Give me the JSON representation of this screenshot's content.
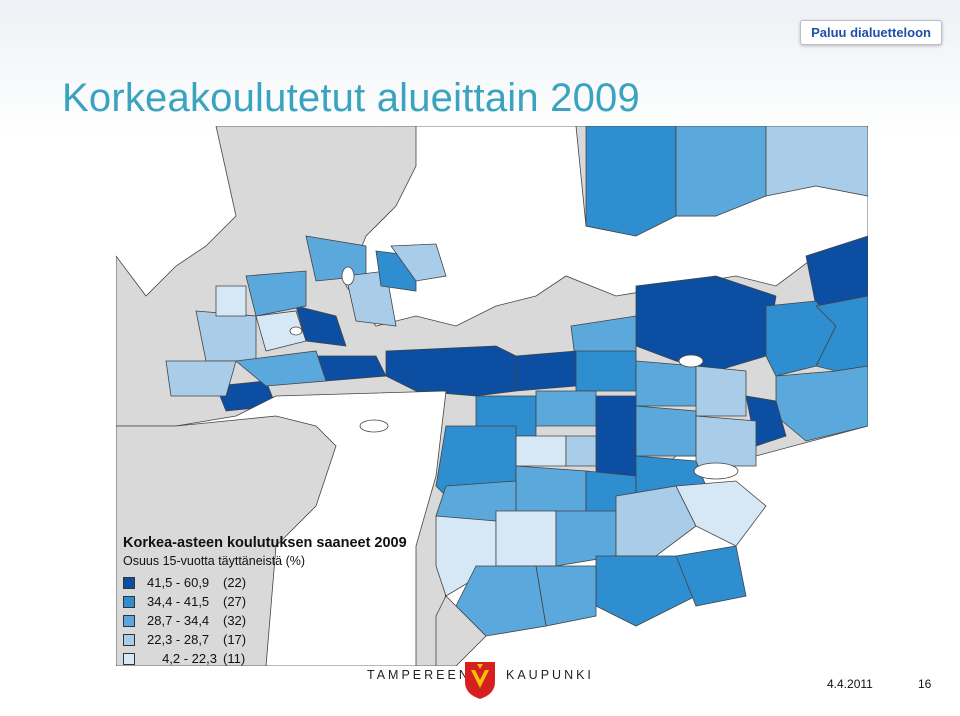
{
  "nav": {
    "back_label": "Paluu dialuetteloon"
  },
  "slide": {
    "title": "Korkeakoulutetut alueittain 2009"
  },
  "legend": {
    "title": "Korkea-asteen koulutuksen saaneet 2009",
    "subtitle": "Osuus 15-vuotta täyttäneistä (%)",
    "classes": [
      {
        "range": "41,5 - 60,9",
        "count": "(22)",
        "color": "#0b4ea2"
      },
      {
        "range": "34,4 - 41,5",
        "count": "(27)",
        "color": "#2e8ed0"
      },
      {
        "range": "28,7 - 34,4",
        "count": "(32)",
        "color": "#5aa8dc"
      },
      {
        "range": "22,3 - 28,7",
        "count": "(17)",
        "color": "#a9cce9"
      },
      {
        "range": "4,2 - 22,3",
        "count": "(11)",
        "color": "#d6e8f5"
      }
    ]
  },
  "colors": {
    "land": "#d9d9d9",
    "water": "#ffffff",
    "border": "#333333"
  },
  "footer": {
    "city_left": "TAMPEREEN",
    "city_right": "KAUPUNKI",
    "logo": "tampere-coat-of-arms-icon",
    "date": "4.4.2011",
    "page": "16"
  }
}
